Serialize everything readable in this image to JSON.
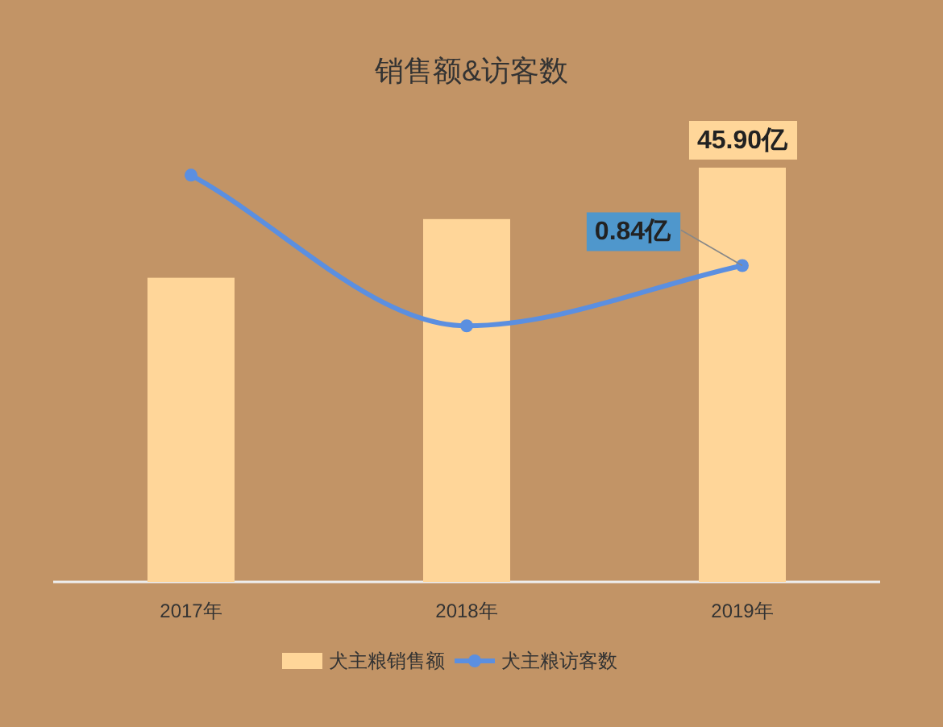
{
  "chart_data": {
    "type": "bar",
    "title": "销售额&访客数",
    "categories": [
      "2017年",
      "2018年",
      "2019年"
    ],
    "ylim": [
      0,
      45.9
    ],
    "y2lim": [
      0,
      1.1
    ],
    "tick_labels": "x",
    "legend": "bottom",
    "marker": "circle",
    "series": [
      {
        "name": "犬主粮销售额",
        "color": "#ffd699",
        "values": [
          33.7,
          40.2,
          45.9
        ],
        "value_labels": [
          null,
          null,
          "45.90亿"
        ]
      },
      {
        "name": "犬主粮访客数",
        "type": "line",
        "axis": "y2",
        "color": "#5b8fe0",
        "values": [
          1.08,
          0.68,
          0.84
        ],
        "value_labels": [
          null,
          null,
          "0.84亿"
        ]
      }
    ]
  }
}
